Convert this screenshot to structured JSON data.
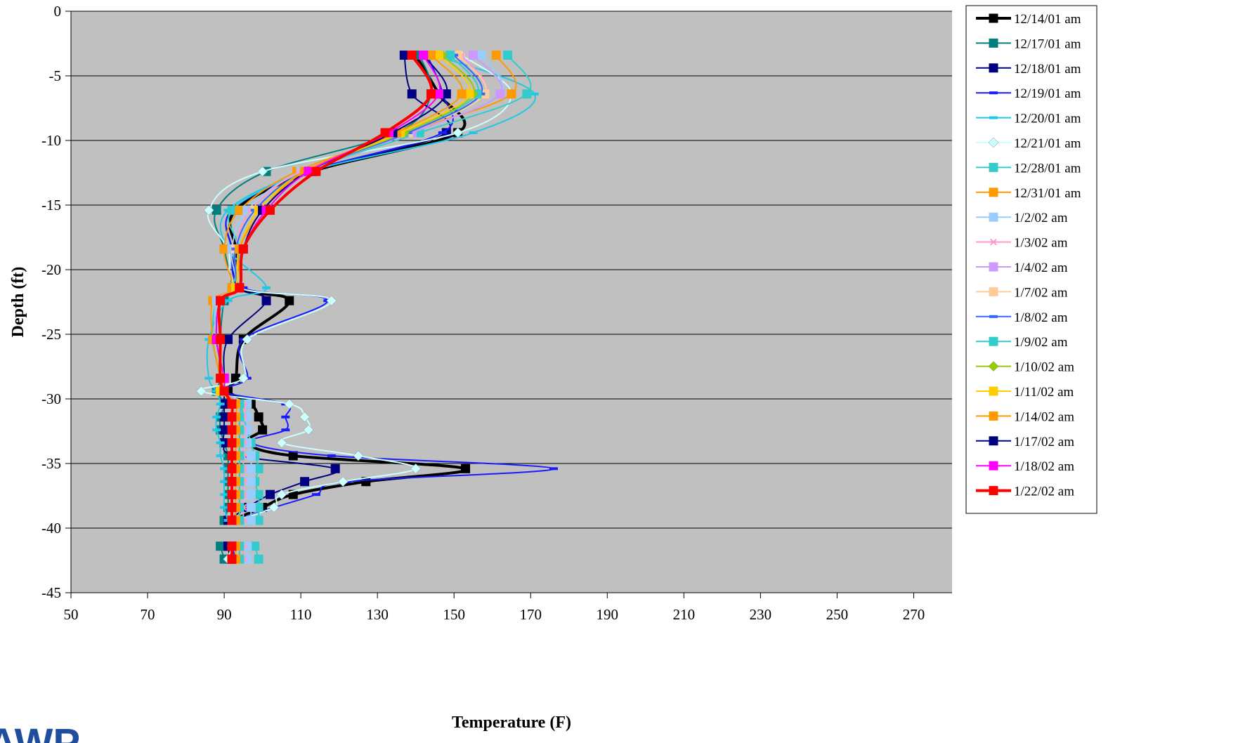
{
  "chart_data": {
    "type": "line",
    "title": "",
    "xlabel": "Temperature (F)",
    "ylabel": "Depth (ft)",
    "xlim": [
      50,
      280
    ],
    "ylim": [
      -45,
      0
    ],
    "xticks": [
      50,
      70,
      90,
      110,
      130,
      150,
      170,
      190,
      210,
      230,
      250,
      270
    ],
    "yticks": [
      0,
      -5,
      -10,
      -15,
      -20,
      -25,
      -30,
      -35,
      -40,
      -45
    ],
    "grid": "horizontal",
    "plot_background": "#c0c0c0",
    "legend_position": "right",
    "depths": [
      -3.4,
      -6.4,
      -9.4,
      -12.4,
      -15.4,
      -18.4,
      -21.4,
      -22.4,
      -25.4,
      -28.4,
      -29.4,
      -30.4,
      -31.4,
      -32.4,
      -33.4,
      -34.4,
      -35.4,
      -36.4,
      -37.4,
      -38.4,
      -39.4,
      -41.4,
      -42.4
    ],
    "series": [
      {
        "name": "12/14/01 am",
        "color": "#000000",
        "marker": "square",
        "width": 4,
        "values": [
          140,
          146,
          151,
          113,
          93,
          93,
          94,
          107,
          95,
          93,
          91,
          97,
          99,
          100,
          96,
          108,
          153,
          127,
          108,
          100,
          92,
          91,
          92
        ]
      },
      {
        "name": "12/17/01 am",
        "color": "#007f7f",
        "marker": "square",
        "width": 2,
        "values": [
          141,
          144,
          135,
          101,
          88,
          90,
          92,
          90,
          89,
          89,
          88,
          90,
          89,
          89,
          90,
          91,
          91,
          91,
          91,
          91,
          90,
          89,
          90
        ]
      },
      {
        "name": "12/18/01 am",
        "color": "#000080",
        "marker": "square",
        "width": 2,
        "values": [
          137,
          139,
          148,
          112,
          92,
          92,
          94,
          101,
          91,
          90,
          90,
          90,
          90,
          90,
          90,
          93,
          119,
          111,
          102,
          96,
          91,
          91,
          92
        ]
      },
      {
        "name": "12/19/01 am",
        "color": "#1a1aff",
        "marker": "dash",
        "width": 2,
        "values": [
          143,
          147,
          147,
          112,
          92,
          92,
          95,
          117,
          95,
          96,
          89,
          106,
          106,
          106,
          97,
          118,
          176,
          122,
          114,
          103,
          93,
          92,
          93
        ]
      },
      {
        "name": "12/20/01 am",
        "color": "#1ec8e6",
        "marker": "dash",
        "width": 2,
        "values": [
          145,
          171,
          155,
          112,
          91,
          91,
          101,
          91,
          86,
          86,
          88,
          89,
          88,
          88,
          89,
          89,
          90,
          90,
          90,
          90,
          91,
          92,
          92
        ]
      },
      {
        "name": "12/21/01 am",
        "color": "#ccffff",
        "marker": "diamond",
        "width": 2,
        "values": [
          152,
          165,
          151,
          100,
          86,
          91,
          94,
          118,
          96,
          95,
          84,
          107,
          111,
          112,
          105,
          125,
          140,
          121,
          105,
          103,
          93,
          92,
          91
        ]
      },
      {
        "name": "12/28/01 am",
        "color": "#33cccc",
        "marker": "square",
        "width": 2,
        "values": [
          164,
          169,
          141,
          111,
          92,
          94,
          92,
          88,
          87,
          89,
          89,
          94,
          95,
          96,
          97,
          98,
          99,
          98,
          99,
          99,
          99,
          98,
          99
        ]
      },
      {
        "name": "12/31/01 am",
        "color": "#ff9900",
        "marker": "square",
        "width": 2,
        "values": [
          161,
          165,
          137,
          109,
          94,
          90,
          92,
          87,
          87,
          89,
          89,
          94,
          94,
          94,
          94,
          94,
          94,
          94,
          94,
          94,
          94,
          94,
          94
        ]
      },
      {
        "name": "1/2/02 am",
        "color": "#99ccff",
        "marker": "square",
        "width": 2,
        "values": [
          157,
          162,
          139,
          110,
          96,
          92,
          93,
          88,
          88,
          90,
          89,
          96,
          96,
          96,
          96,
          97,
          97,
          97,
          97,
          97,
          97,
          96,
          96
        ]
      },
      {
        "name": "1/3/02 am",
        "color": "#ff99cc",
        "marker": "star",
        "width": 2,
        "values": [
          152,
          158,
          138,
          110,
          97,
          93,
          93,
          89,
          88,
          90,
          89,
          95,
          95,
          95,
          95,
          95,
          95,
          95,
          95,
          95,
          95,
          95,
          95
        ]
      },
      {
        "name": "1/4/02 am",
        "color": "#cc99ff",
        "marker": "square",
        "width": 2,
        "values": [
          155,
          162,
          139,
          111,
          98,
          93,
          93,
          89,
          88,
          90,
          89,
          94,
          94,
          94,
          94,
          94,
          94,
          94,
          94,
          94,
          94,
          94,
          94
        ]
      },
      {
        "name": "1/7/02 am",
        "color": "#ffcc99",
        "marker": "square",
        "width": 2,
        "values": [
          151,
          158,
          138,
          111,
          98,
          93,
          93,
          89,
          88,
          90,
          89,
          94,
          94,
          94,
          94,
          94,
          94,
          94,
          94,
          94,
          94,
          94,
          94
        ]
      },
      {
        "name": "1/8/02 am",
        "color": "#3366ff",
        "marker": "dash",
        "width": 2,
        "values": [
          150,
          157,
          138,
          111,
          98,
          93,
          93,
          89,
          88,
          90,
          89,
          94,
          94,
          94,
          94,
          94,
          94,
          94,
          94,
          94,
          94,
          94,
          94
        ]
      },
      {
        "name": "1/9/02 am",
        "color": "#33cccc",
        "marker": "square",
        "width": 2,
        "values": [
          149,
          156,
          137,
          111,
          99,
          94,
          93,
          89,
          88,
          90,
          89,
          94,
          94,
          94,
          94,
          94,
          94,
          94,
          94,
          94,
          94,
          94,
          94
        ]
      },
      {
        "name": "1/10/02 am",
        "color": "#99cc00",
        "marker": "diamond",
        "width": 2,
        "values": [
          147,
          155,
          137,
          111,
          99,
          94,
          93,
          89,
          88,
          90,
          89,
          93,
          93,
          93,
          93,
          93,
          93,
          93,
          93,
          93,
          93,
          93,
          93
        ]
      },
      {
        "name": "1/11/02 am",
        "color": "#ffcc00",
        "marker": "square",
        "width": 2,
        "values": [
          146,
          154,
          136,
          111,
          99,
          94,
          93,
          89,
          88,
          90,
          89,
          93,
          93,
          93,
          93,
          93,
          93,
          93,
          93,
          93,
          93,
          93,
          93
        ]
      },
      {
        "name": "1/14/02 am",
        "color": "#ff9900",
        "marker": "square",
        "width": 2,
        "values": [
          144,
          152,
          135,
          111,
          100,
          94,
          94,
          89,
          88,
          90,
          90,
          93,
          93,
          93,
          93,
          93,
          93,
          93,
          93,
          93,
          93,
          93,
          93
        ]
      },
      {
        "name": "1/17/02 am",
        "color": "#000080",
        "marker": "square",
        "width": 2,
        "values": [
          142,
          148,
          134,
          112,
          100,
          95,
          94,
          89,
          88,
          90,
          90,
          92,
          92,
          92,
          92,
          92,
          92,
          92,
          92,
          92,
          92,
          92,
          92
        ]
      },
      {
        "name": "1/18/02 am",
        "color": "#ff00ff",
        "marker": "square",
        "width": 2,
        "values": [
          142,
          146,
          133,
          112,
          101,
          95,
          94,
          89,
          88,
          90,
          90,
          92,
          92,
          92,
          92,
          92,
          92,
          92,
          92,
          92,
          92,
          92,
          92
        ]
      },
      {
        "name": "1/22/02 am",
        "color": "#ff0000",
        "marker": "square",
        "width": 4,
        "values": [
          139,
          144,
          132,
          114,
          102,
          95,
          94,
          89,
          89,
          89,
          90,
          92,
          92,
          92,
          92,
          92,
          92,
          92,
          92,
          92,
          92,
          92,
          92
        ]
      }
    ]
  },
  "logo": {
    "text": "AWP"
  }
}
